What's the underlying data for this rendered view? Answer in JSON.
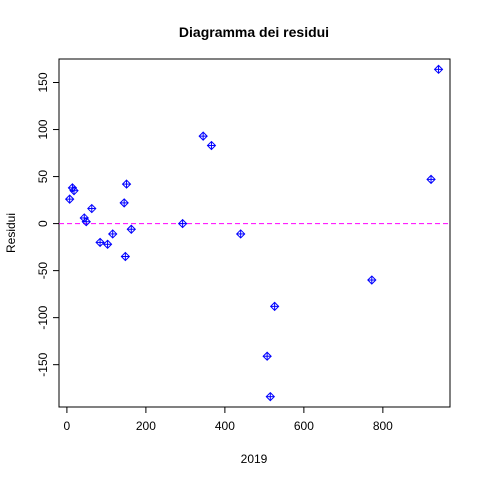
{
  "chart_data": {
    "type": "scatter",
    "title": "Diagramma dei residui",
    "xlabel": "2019",
    "ylabel": "Residui",
    "xlim": [
      -20,
      970
    ],
    "ylim": [
      -195,
      175
    ],
    "x_ticks": [
      0,
      200,
      400,
      600,
      800
    ],
    "y_ticks": [
      -150,
      -100,
      -50,
      0,
      50,
      100,
      150
    ],
    "grid": false,
    "legend": "none",
    "point_color": "#0000ff",
    "reference_line": {
      "y": 0,
      "color": "#ff00ff",
      "style": "dashed"
    },
    "points": [
      {
        "x": 7,
        "y": 26
      },
      {
        "x": 14,
        "y": 38
      },
      {
        "x": 18,
        "y": 35
      },
      {
        "x": 44,
        "y": 6
      },
      {
        "x": 49,
        "y": 2
      },
      {
        "x": 63,
        "y": 16
      },
      {
        "x": 84,
        "y": -20
      },
      {
        "x": 103,
        "y": -22
      },
      {
        "x": 116,
        "y": -11
      },
      {
        "x": 145,
        "y": 22
      },
      {
        "x": 148,
        "y": -35
      },
      {
        "x": 151,
        "y": 42
      },
      {
        "x": 163,
        "y": -6
      },
      {
        "x": 293,
        "y": 0
      },
      {
        "x": 345,
        "y": 93
      },
      {
        "x": 366,
        "y": 83
      },
      {
        "x": 440,
        "y": -11
      },
      {
        "x": 507,
        "y": -141
      },
      {
        "x": 515,
        "y": -184
      },
      {
        "x": 526,
        "y": -88
      },
      {
        "x": 772,
        "y": -60
      },
      {
        "x": 922,
        "y": 47
      },
      {
        "x": 941,
        "y": 164
      }
    ]
  }
}
